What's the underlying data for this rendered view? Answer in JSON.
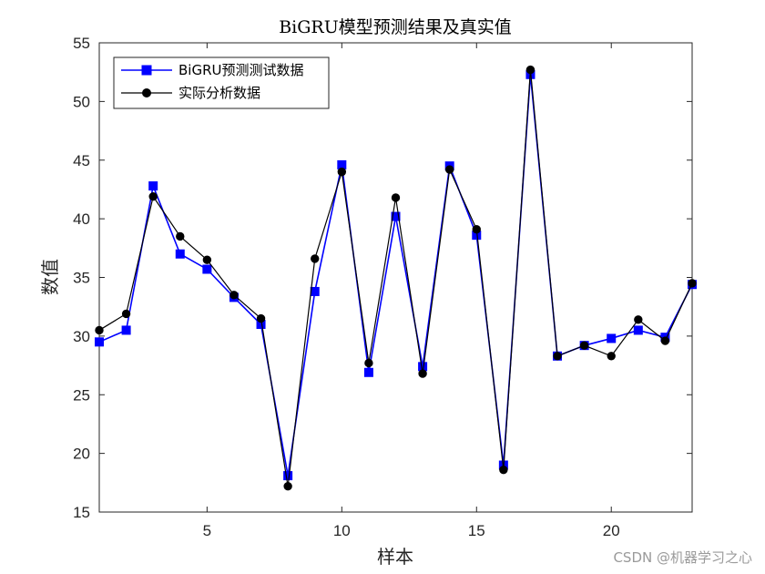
{
  "chart_data": {
    "type": "line",
    "title": "BiGRU模型预测结果及真实值",
    "xlabel": "样本",
    "ylabel": "数值",
    "xlim": [
      1,
      23
    ],
    "ylim": [
      15,
      55
    ],
    "xticks": [
      5,
      10,
      15,
      20
    ],
    "yticks": [
      15,
      20,
      25,
      30,
      35,
      40,
      45,
      50,
      55
    ],
    "grid": false,
    "legend_position": "top-left",
    "x": [
      1,
      2,
      3,
      4,
      5,
      6,
      7,
      8,
      9,
      10,
      11,
      12,
      13,
      14,
      15,
      16,
      17,
      18,
      19,
      20,
      21,
      22,
      23
    ],
    "series": [
      {
        "name": "BiGRU预测测试数据",
        "color": "#0000ff",
        "marker": "square",
        "values": [
          29.5,
          30.5,
          42.8,
          37.0,
          35.7,
          33.3,
          31.0,
          18.1,
          33.8,
          44.6,
          26.9,
          40.2,
          27.4,
          44.5,
          38.6,
          19.0,
          52.3,
          28.3,
          29.2,
          29.8,
          30.5,
          29.9,
          34.4
        ]
      },
      {
        "name": "实际分析数据",
        "color": "#000000",
        "marker": "circle",
        "values": [
          30.5,
          31.9,
          41.9,
          38.5,
          36.5,
          33.5,
          31.5,
          17.2,
          36.6,
          44.0,
          27.7,
          41.8,
          26.8,
          44.2,
          39.1,
          18.6,
          52.7,
          28.3,
          29.2,
          28.3,
          31.4,
          29.6,
          34.5
        ]
      }
    ]
  },
  "watermark": "CSDN @机器学习之心"
}
